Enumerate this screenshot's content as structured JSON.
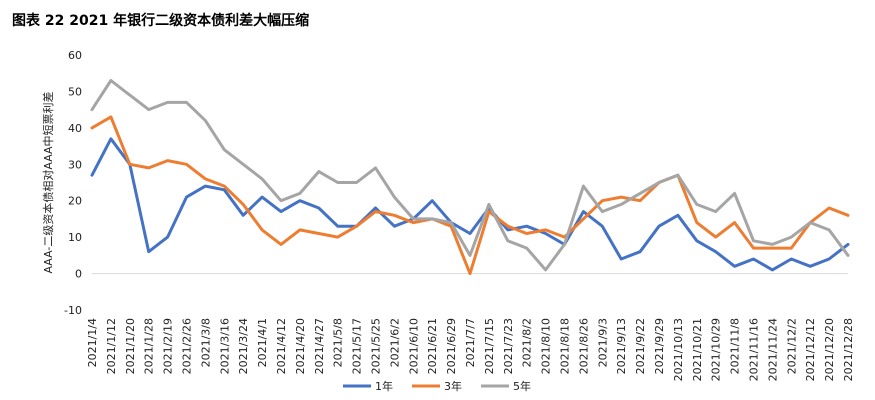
{
  "title": "图表 22  2021 年银行二级资本债利差大幅压缩",
  "chart_data": {
    "type": "line",
    "title": "图表 22  2021 年银行二级资本债利差大幅压缩",
    "ylabel": "AAA-二级资本债相对AAA中短票利差",
    "xlabel": "",
    "ylim": [
      -10,
      60
    ],
    "yticks": [
      -10,
      0,
      10,
      20,
      30,
      40,
      50,
      60
    ],
    "grid": false,
    "legend_position": "bottom",
    "x": [
      "2021/1/4",
      "2021/1/12",
      "2021/1/20",
      "2021/1/28",
      "2021/2/19",
      "2021/2/26",
      "2021/3/8",
      "2021/3/16",
      "2021/3/24",
      "2021/4/1",
      "2021/4/12",
      "2021/4/20",
      "2021/4/27",
      "2021/5/8",
      "2021/5/17",
      "2021/5/25",
      "2021/6/2",
      "2021/6/10",
      "2021/6/21",
      "2021/6/29",
      "2021/7/7",
      "2021/7/15",
      "2021/7/23",
      "2021/8/2",
      "2021/8/10",
      "2021/8/18",
      "2021/8/26",
      "2021/9/3",
      "2021/9/13",
      "2021/9/22",
      "2021/9/29",
      "2021/10/13",
      "2021/10/21",
      "2021/10/29",
      "2021/11/8",
      "2021/11/16",
      "2021/11/24",
      "2021/12/2",
      "2021/12/12",
      "2021/12/20",
      "2021/12/28"
    ],
    "series": [
      {
        "name": "1年",
        "color": "#4472c4",
        "values": [
          27,
          37,
          30,
          6,
          10,
          21,
          24,
          23,
          16,
          21,
          17,
          20,
          18,
          13,
          13,
          18,
          13,
          15,
          20,
          14,
          11,
          18,
          12,
          13,
          11,
          8,
          17,
          13,
          4,
          6,
          13,
          16,
          9,
          6,
          2,
          4,
          1,
          4,
          2,
          4,
          8
        ]
      },
      {
        "name": "3年",
        "color": "#ed7d31",
        "values": [
          40,
          43,
          30,
          29,
          31,
          30,
          26,
          24,
          19,
          12,
          8,
          12,
          11,
          10,
          13,
          17,
          16,
          14,
          15,
          13,
          0,
          17,
          13,
          11,
          12,
          10,
          15,
          20,
          21,
          20,
          25,
          27,
          14,
          10,
          14,
          7,
          7,
          7,
          14,
          18,
          16
        ]
      },
      {
        "name": "5年",
        "color": "#a5a5a5",
        "values": [
          45,
          53,
          49,
          45,
          47,
          47,
          42,
          34,
          30,
          26,
          20,
          22,
          28,
          25,
          25,
          29,
          21,
          15,
          15,
          14,
          5,
          19,
          9,
          7,
          1,
          8,
          24,
          17,
          19,
          22,
          25,
          27,
          19,
          17,
          22,
          9,
          8,
          10,
          14,
          12,
          5
        ]
      }
    ]
  }
}
